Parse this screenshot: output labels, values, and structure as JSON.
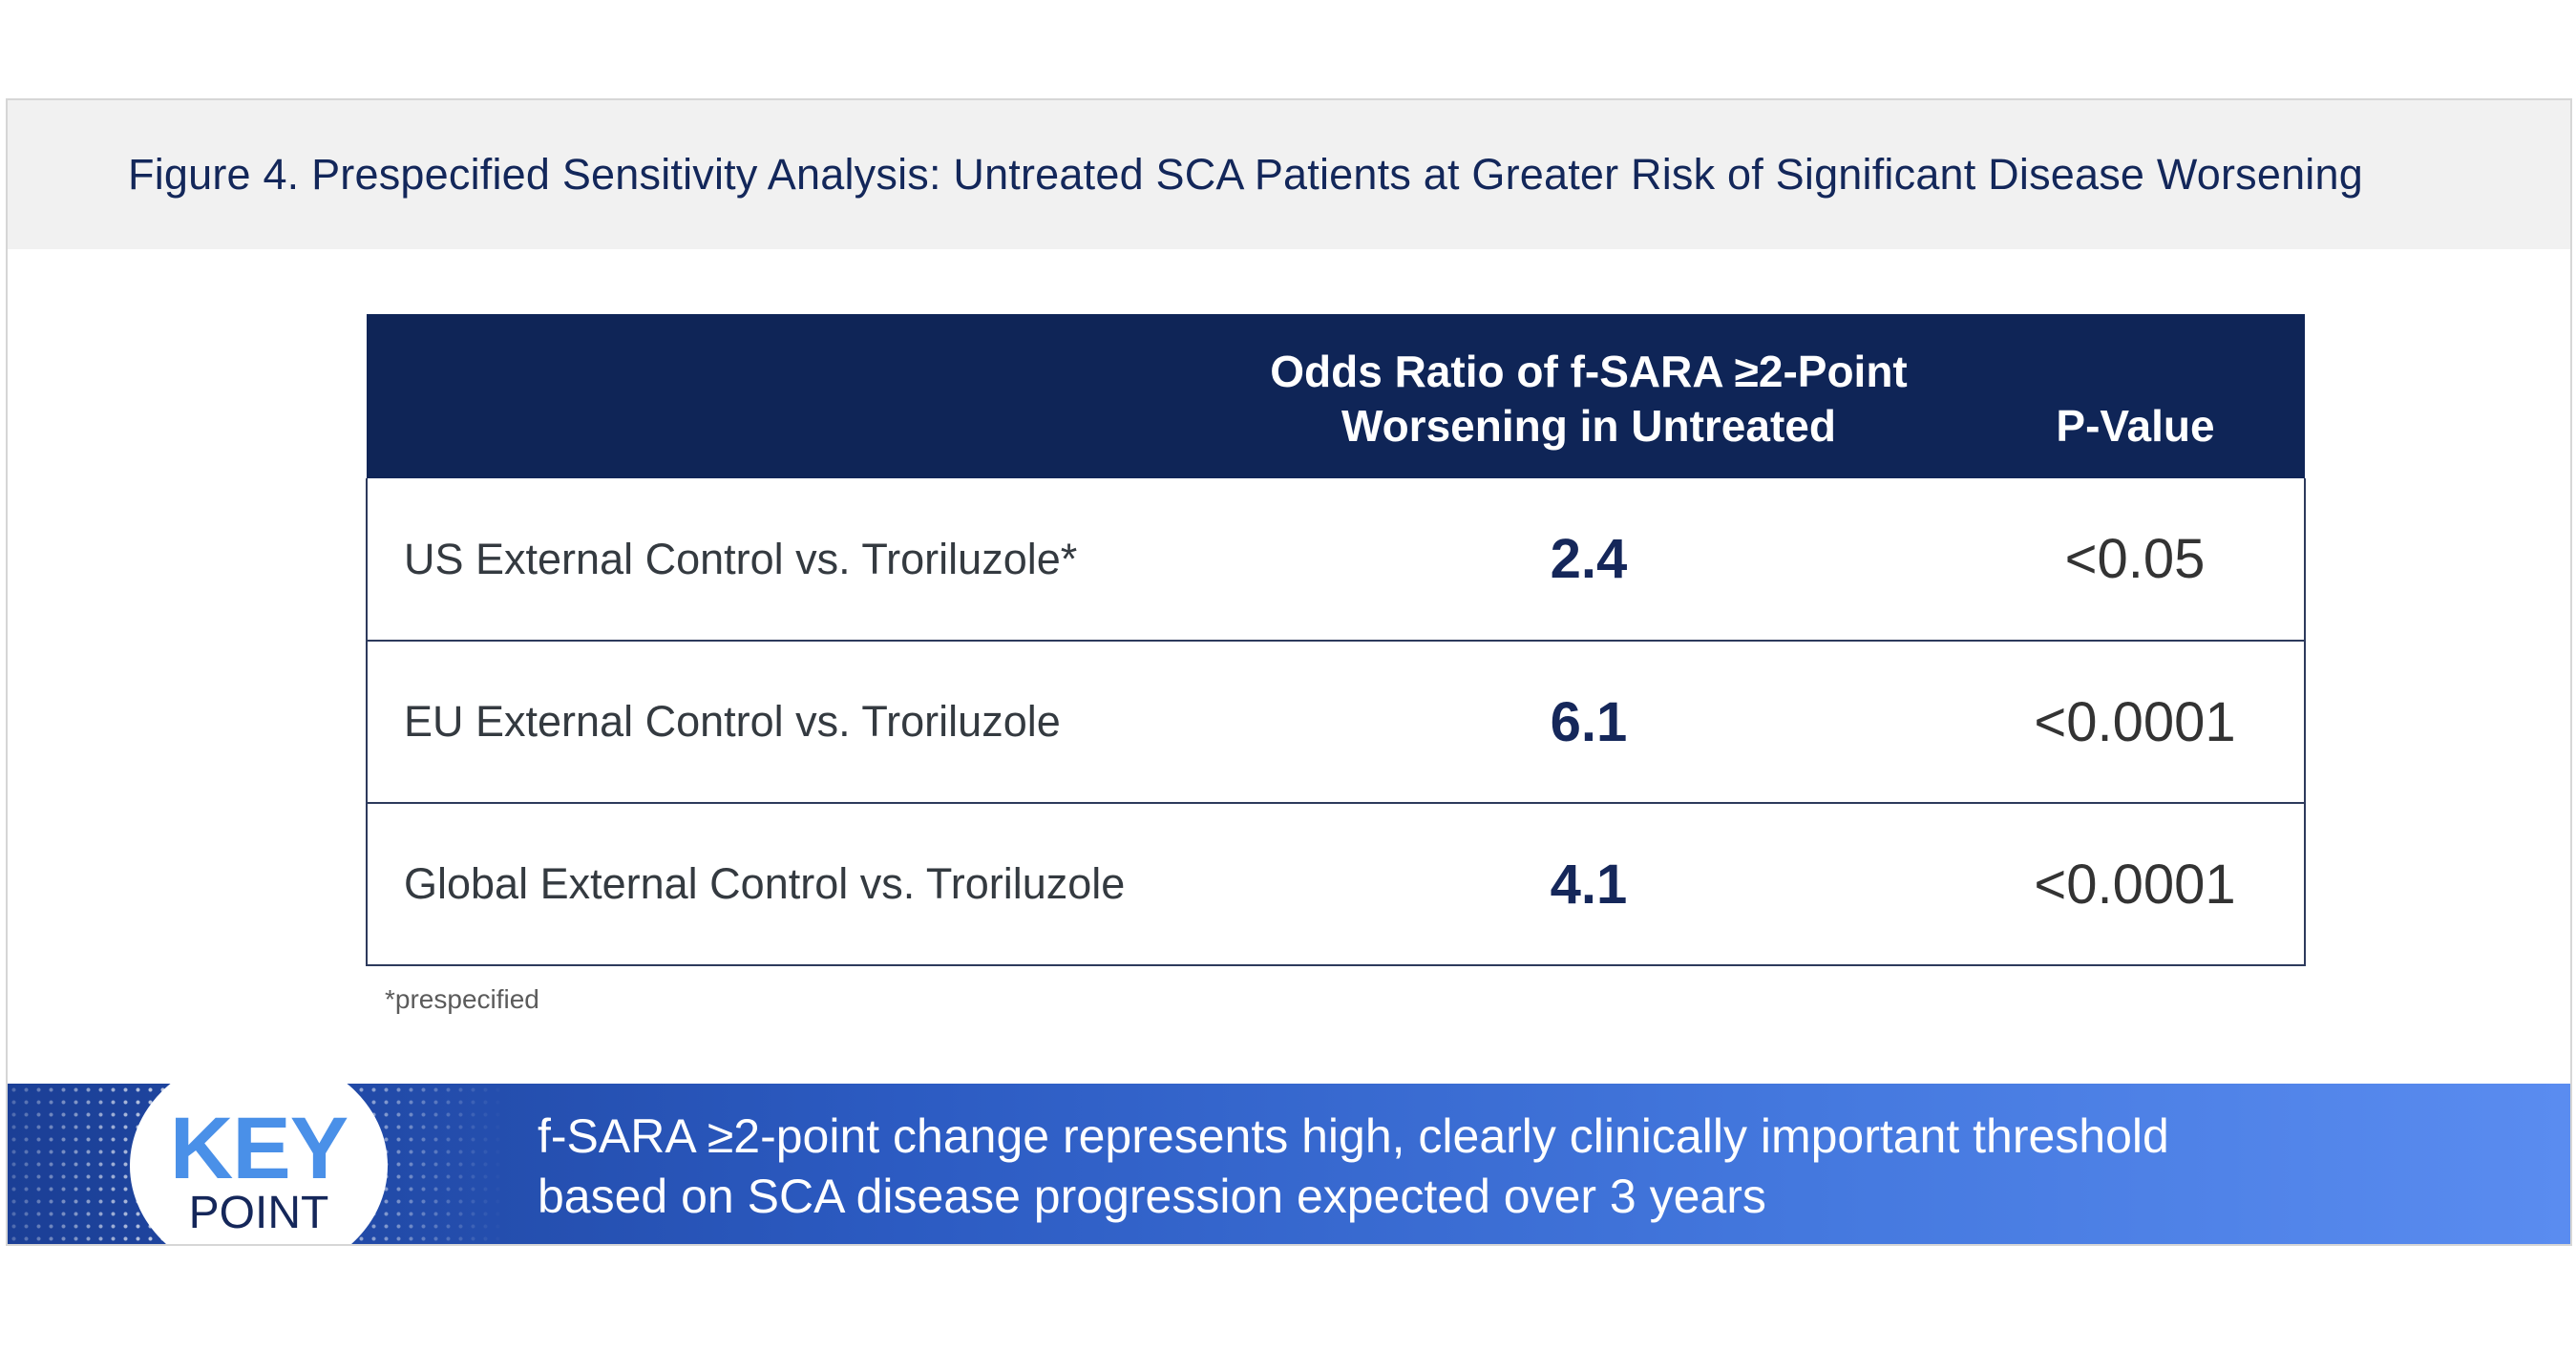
{
  "figure": {
    "title": "Figure 4. Prespecified Sensitivity Analysis: Untreated SCA Patients at Greater Risk of Significant Disease Worsening"
  },
  "table": {
    "headers": {
      "label": "",
      "odds_ratio_line1": "Odds Ratio of f-SARA ≥2-Point",
      "odds_ratio_line2": "Worsening in Untreated",
      "p_value": "P-Value"
    },
    "rows": [
      {
        "label": "US External Control vs. Troriluzole*",
        "odds_ratio": "2.4",
        "p_value": "<0.05"
      },
      {
        "label": "EU External Control vs. Troriluzole",
        "odds_ratio": "6.1",
        "p_value": "<0.0001"
      },
      {
        "label": "Global External Control vs. Troriluzole",
        "odds_ratio": "4.1",
        "p_value": "<0.0001"
      }
    ],
    "footnote": "*prespecified"
  },
  "key_point": {
    "key_word": "KEY",
    "point_word": "POINT",
    "line1": "f-SARA ≥2-point change represents high, clearly clinically important threshold",
    "line2": "based on SCA disease progression expected over 3 years"
  },
  "colors": {
    "navy": "#0f2557",
    "banner_blue": "#2c5bc2",
    "key_blue": "#4a90e8",
    "title_band": "#f1f1f1"
  }
}
